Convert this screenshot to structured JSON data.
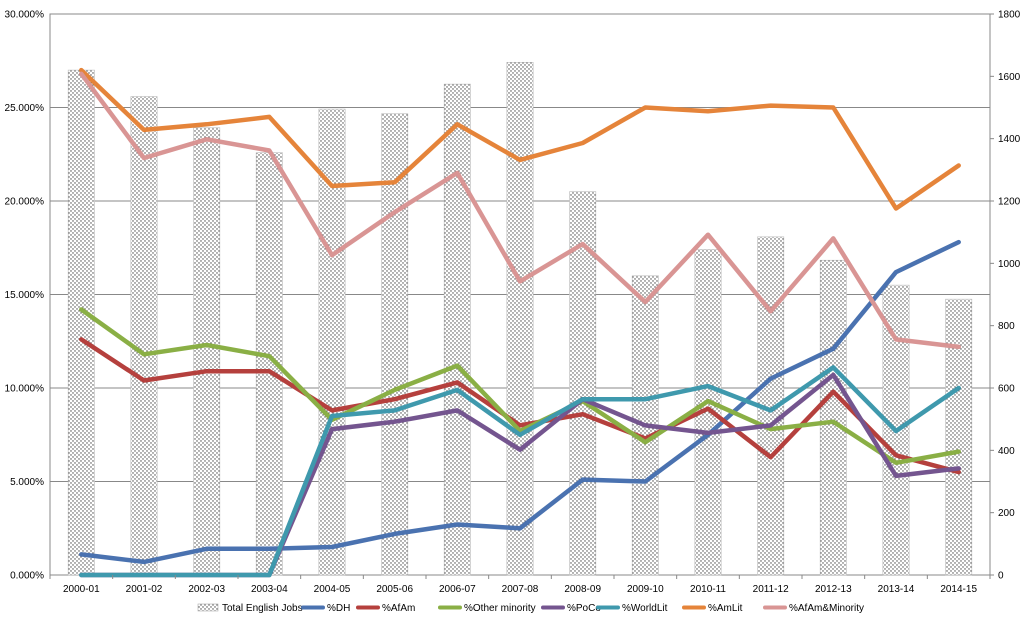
{
  "chart_data": {
    "type": "bar+line",
    "title": "",
    "categories": [
      "2000-01",
      "2001-02",
      "2002-03",
      "2003-04",
      "2004-05",
      "2005-06",
      "2006-07",
      "2007-08",
      "2008-09",
      "2009-10",
      "2010-11",
      "2011-12",
      "2012-13",
      "2013-14",
      "2014-15"
    ],
    "left_axis": {
      "range": [
        0,
        0.3
      ],
      "ticks": [
        0,
        0.05,
        0.1,
        0.15,
        0.2,
        0.25,
        0.3
      ],
      "tick_labels": [
        "0.000%",
        "5.000%",
        "10.000%",
        "15.000%",
        "20.000%",
        "25.000%",
        "30.000%"
      ]
    },
    "right_axis": {
      "range": [
        0,
        1800
      ],
      "ticks": [
        0,
        200,
        400,
        600,
        800,
        1000,
        1200,
        1400,
        1600,
        1800
      ],
      "tick_labels": [
        "0",
        "200",
        "400",
        "600",
        "800",
        "1000",
        "1200",
        "1400",
        "1600",
        "1800"
      ]
    },
    "grid": true,
    "legend_position": "bottom",
    "bars": {
      "name": "Total English Jobs",
      "axis": "right",
      "values": [
        1620,
        1535,
        1435,
        1355,
        1495,
        1480,
        1575,
        1645,
        1230,
        960,
        1045,
        1085,
        1010,
        930,
        885
      ]
    },
    "series": [
      {
        "name": "%DH",
        "color": "#4a72b0",
        "values": [
          0.011,
          0.007,
          0.014,
          0.014,
          0.015,
          0.022,
          0.027,
          0.025,
          0.051,
          0.05,
          0.075,
          0.105,
          0.121,
          0.162,
          0.178
        ]
      },
      {
        "name": "%AfAm",
        "color": "#b5403d",
        "values": [
          0.126,
          0.104,
          0.109,
          0.109,
          0.088,
          0.094,
          0.103,
          0.08,
          0.086,
          0.073,
          0.089,
          0.063,
          0.098,
          0.064,
          0.055
        ]
      },
      {
        "name": "%Other minority",
        "color": "#8aaf45",
        "values": [
          0.142,
          0.118,
          0.123,
          0.117,
          0.083,
          0.099,
          0.112,
          0.077,
          0.093,
          0.071,
          0.093,
          0.078,
          0.082,
          0.06,
          0.066
        ]
      },
      {
        "name": "%PoCo",
        "color": "#74558f",
        "values": [
          0.0,
          0.0,
          0.0,
          0.0,
          0.078,
          0.082,
          0.088,
          0.067,
          0.094,
          0.08,
          0.076,
          0.08,
          0.107,
          0.053,
          0.057
        ]
      },
      {
        "name": "%WorldLit",
        "color": "#3f99ad",
        "values": [
          0.0,
          0.0,
          0.0,
          0.0,
          0.085,
          0.088,
          0.099,
          0.075,
          0.094,
          0.094,
          0.101,
          0.088,
          0.111,
          0.077,
          0.1
        ]
      },
      {
        "name": "%AmLit",
        "color": "#e5843a",
        "values": [
          0.27,
          0.238,
          0.241,
          0.245,
          0.208,
          0.21,
          0.241,
          0.222,
          0.231,
          0.25,
          0.248,
          0.251,
          0.25,
          0.196,
          0.219
        ]
      },
      {
        "name": "%AfAm&Minority",
        "color": "#d99594",
        "values": [
          0.268,
          0.223,
          0.233,
          0.227,
          0.171,
          0.194,
          0.215,
          0.157,
          0.177,
          0.146,
          0.182,
          0.141,
          0.18,
          0.126,
          0.122
        ]
      }
    ]
  }
}
